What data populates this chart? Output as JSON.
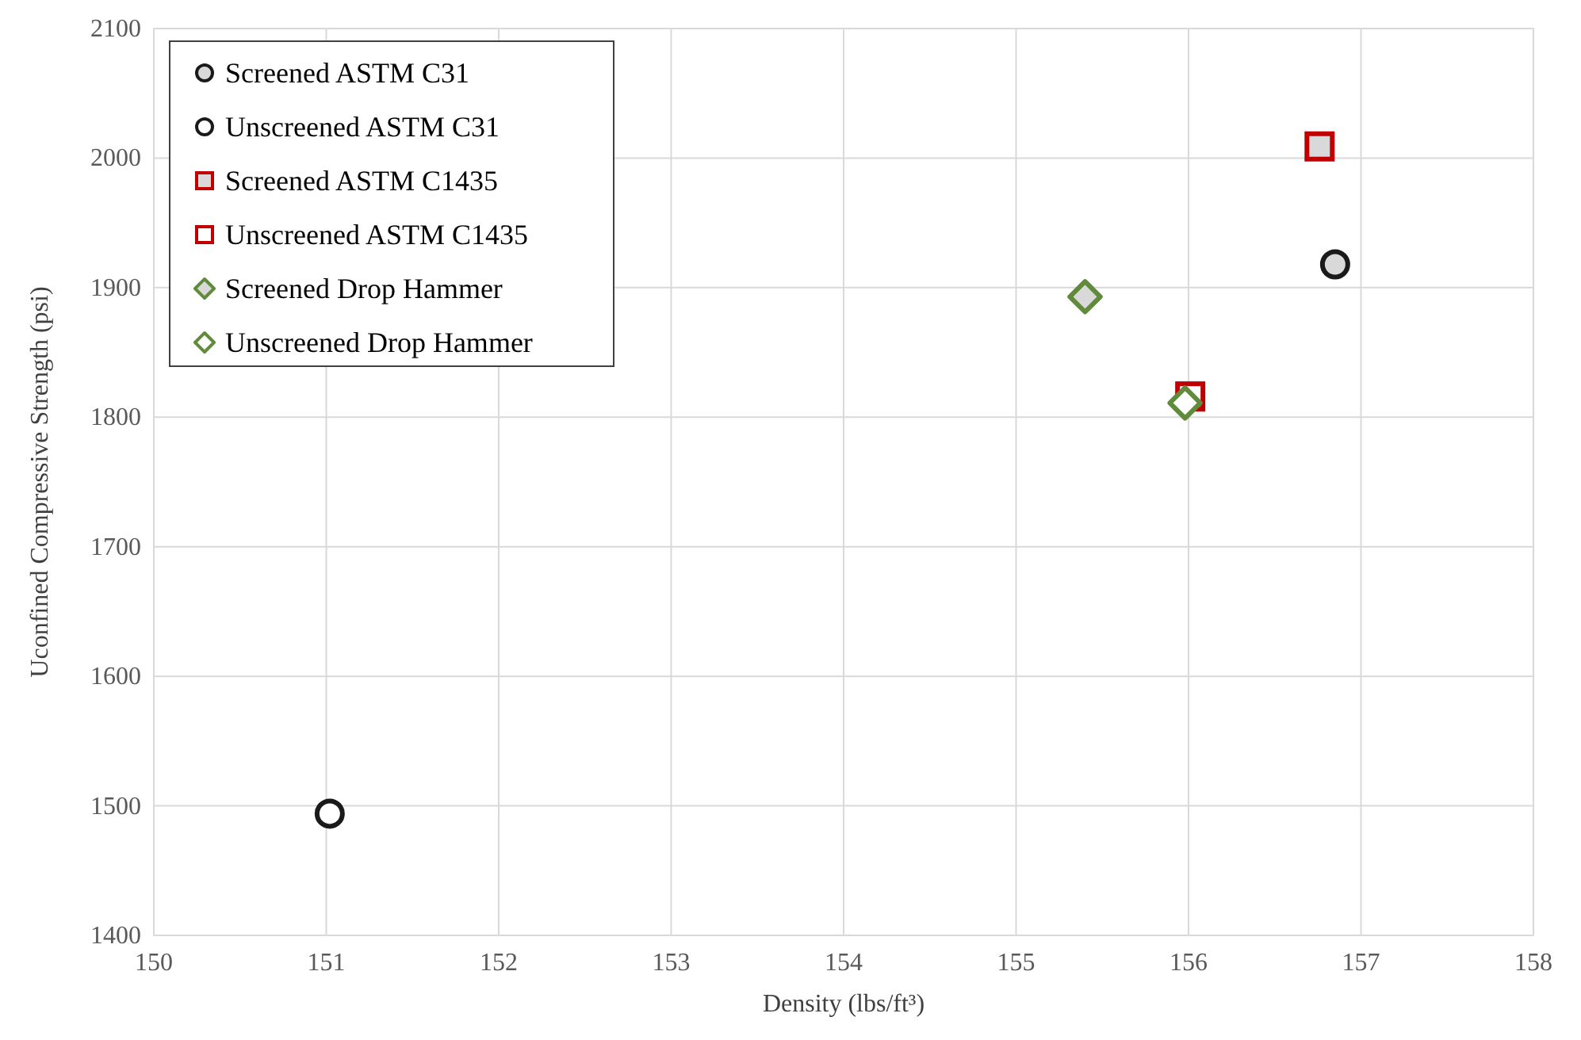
{
  "chart_data": {
    "type": "scatter",
    "xlabel": "Density (lbs/ft³)",
    "ylabel": "Uconfined Compressive Strength (psi)",
    "xlim": [
      150,
      158
    ],
    "xticks": [
      150,
      151,
      152,
      153,
      154,
      155,
      156,
      157,
      158
    ],
    "ylim": [
      1400,
      2100
    ],
    "yticks": [
      1400,
      1500,
      1600,
      1700,
      1800,
      1900,
      2000,
      2100
    ],
    "grid": true,
    "legend": "top left",
    "series": [
      {
        "name": "Screened ASTM C31",
        "color": "#1a1a1a",
        "marker": "circle",
        "x": [
          156.85
        ],
        "values": [
          1918
        ]
      },
      {
        "name": "Unscreened ASTM C31",
        "color": "#1a1a1a",
        "marker": "circle",
        "x": [
          151.02
        ],
        "values": [
          1494
        ]
      },
      {
        "name": "Screened ASTM C1435",
        "color": "#c00000",
        "marker": "square",
        "x": [
          156.76
        ],
        "values": [
          2009
        ]
      },
      {
        "name": "Unscreened ASTM C1435",
        "color": "#c00000",
        "marker": "square",
        "x": [
          156.01
        ],
        "values": [
          1816
        ]
      },
      {
        "name": "Screened Drop Hammer",
        "color": "#5f8b3a",
        "marker": "diamond",
        "x": [
          155.4
        ],
        "values": [
          1893
        ]
      },
      {
        "name": "Unscreened Drop Hammer",
        "color": "#5f8b3a",
        "marker": "diamond",
        "x": [
          155.98
        ],
        "values": [
          1811
        ]
      }
    ]
  }
}
